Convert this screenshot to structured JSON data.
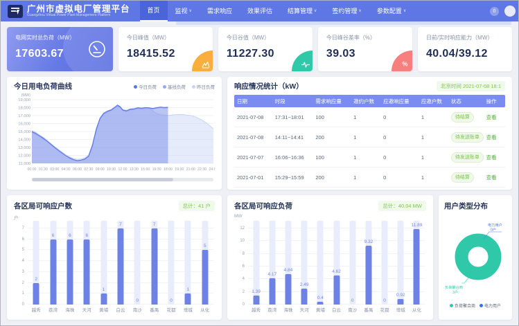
{
  "header": {
    "title": "广州市虚拟电厂管理平台",
    "subtitle": "Guangzhou Virtual Power Plant Management Platform",
    "nav": [
      {
        "label": "首页",
        "active": true,
        "caret": false
      },
      {
        "label": "监视",
        "active": false,
        "caret": true
      },
      {
        "label": "需求响应",
        "active": false,
        "caret": false
      },
      {
        "label": "效果评估",
        "active": false,
        "caret": false
      },
      {
        "label": "结算管理",
        "active": false,
        "caret": true
      },
      {
        "label": "签约管理",
        "active": false,
        "caret": true
      },
      {
        "label": "参数配置",
        "active": false,
        "caret": true
      }
    ],
    "notification_count": "0"
  },
  "kpis": [
    {
      "label": "电网实时总负荷（MW）",
      "value": "17603.67",
      "icon": "gauge-icon",
      "style": "primary",
      "accent": ""
    },
    {
      "label": "今日峰值（MW）",
      "value": "18415.52",
      "icon": "peak-icon",
      "style": "plain",
      "accent": "#f9ae3d"
    },
    {
      "label": "今日谷值（MW）",
      "value": "11227.30",
      "icon": "pulse-icon",
      "style": "plain",
      "accent": "#2fc9aa"
    },
    {
      "label": "今日峰谷差率（%）",
      "value": "39.03",
      "icon": "percent-icon",
      "style": "plain",
      "accent": "#f97e7e"
    },
    {
      "label": "日前/实时响应能力（MW）",
      "value": "40.04/39.12",
      "icon": "",
      "style": "plain",
      "accent": ""
    }
  ],
  "load_chart": {
    "title": "今日用电负荷曲线",
    "unit_label": "(MW)"
  },
  "response_table": {
    "title": "响应情况统计（kW）",
    "timestamp": "北京时间 2021-07-08 18:1",
    "columns": [
      "日期",
      "时段",
      "需求响应量",
      "邀约户数",
      "应邀响应量",
      "应邀户数",
      "状态",
      "操作"
    ],
    "rows": [
      {
        "cells": [
          "2021-07-08",
          "17:31~18:01",
          "100",
          "1",
          "0",
          "1"
        ],
        "status": "待结算",
        "action": "查看"
      },
      {
        "cells": [
          "2021-07-08",
          "14:11~14:41",
          "200",
          "1",
          "0",
          "1"
        ],
        "status": "待发送账单",
        "action": "查看"
      },
      {
        "cells": [
          "2021-07-07",
          "16:06~16:36",
          "100",
          "1",
          "0",
          "1"
        ],
        "status": "待发送账单",
        "action": "查看"
      },
      {
        "cells": [
          "2021-07-01",
          "15:29~15:59",
          "200",
          "1",
          "0",
          "1"
        ],
        "status": "待结算",
        "action": "查看"
      }
    ]
  },
  "district_users": {
    "title": "各区局可响应户数",
    "badge": "总计：41 户",
    "unit": "户"
  },
  "district_load": {
    "title": "各区局可响应负荷",
    "badge": "总计：40.04 MW",
    "unit": "MW"
  },
  "user_type": {
    "title": "用户类型分布",
    "callouts": [
      {
        "label": "电力用户",
        "value": "0户",
        "color": "#4a7df0"
      },
      {
        "label": "负荷聚合商",
        "value": "3户",
        "color": "#2fc9aa"
      }
    ],
    "legend": [
      {
        "label": "负荷聚合商",
        "color": "#2fc9aa"
      },
      {
        "label": "电力用户",
        "color": "#3a6ef0"
      }
    ]
  },
  "chart_data": [
    {
      "type": "area",
      "title": "今日用电负荷曲线",
      "ylabel": "(MW)",
      "ylim": [
        11000,
        19000
      ],
      "y_step": 1000,
      "x_ticks": [
        "00:00",
        "01:30",
        "03:00",
        "04:30",
        "06:00",
        "07:30",
        "09:00",
        "10:30",
        "12:00",
        "13:30",
        "15:00",
        "16:30",
        "18:00",
        "19:30",
        "21:00",
        "22:30",
        "24:00"
      ],
      "x_hours": [
        0,
        1.5,
        3,
        4.5,
        6,
        7.5,
        9,
        10.5,
        12,
        13.5,
        15,
        16.5,
        18,
        19.5,
        21,
        22.5,
        24
      ],
      "series": [
        {
          "name": "昨日负荷",
          "color": "#c9d4f7",
          "fill": "rgba(205,216,248,0.50)",
          "points": [
            [
              0,
              15120
            ],
            [
              0.5,
              14900
            ],
            [
              1,
              14580
            ],
            [
              1.5,
              14280
            ],
            [
              2,
              13920
            ],
            [
              2.5,
              13520
            ],
            [
              3,
              13120
            ],
            [
              3.5,
              12760
            ],
            [
              4,
              12420
            ],
            [
              4.5,
              12080
            ],
            [
              5,
              11820
            ],
            [
              5.5,
              11620
            ],
            [
              6,
              11500
            ],
            [
              6.5,
              11560
            ],
            [
              7,
              11700
            ],
            [
              7.5,
              12060
            ],
            [
              8,
              13380
            ],
            [
              8.5,
              15380
            ],
            [
              9,
              16720
            ],
            [
              9.5,
              17360
            ],
            [
              10,
              17620
            ],
            [
              10.5,
              17780
            ],
            [
              11,
              18120
            ],
            [
              11.5,
              18280
            ],
            [
              12,
              17800
            ],
            [
              12.5,
              17660
            ],
            [
              13,
              17840
            ],
            [
              13.5,
              17880
            ],
            [
              14,
              18020
            ],
            [
              14.5,
              17960
            ],
            [
              15,
              18030
            ],
            [
              15.5,
              18000
            ],
            [
              16,
              17600
            ],
            [
              16.5,
              17250
            ],
            [
              17,
              17120
            ],
            [
              17.5,
              17060
            ],
            [
              18,
              17020
            ],
            [
              18.5,
              17060
            ],
            [
              19,
              17120
            ],
            [
              19.5,
              17160
            ],
            [
              20,
              17120
            ],
            [
              20.5,
              17070
            ],
            [
              21,
              17010
            ],
            [
              21.5,
              16890
            ],
            [
              22,
              16680
            ],
            [
              22.5,
              16430
            ],
            [
              23,
              16130
            ],
            [
              23.5,
              15740
            ],
            [
              24,
              15320
            ]
          ]
        },
        {
          "name": "基线负荷",
          "color": "#9aa8f0",
          "fill": "rgba(154,168,240,0.28)",
          "points": [
            [
              0,
              14920
            ],
            [
              1,
              14400
            ],
            [
              2,
              13760
            ],
            [
              3,
              12960
            ],
            [
              4,
              12240
            ],
            [
              5,
              11650
            ],
            [
              5.5,
              11430
            ],
            [
              6,
              11300
            ],
            [
              6.5,
              11380
            ],
            [
              7,
              11500
            ],
            [
              7.5,
              11850
            ],
            [
              8,
              13150
            ],
            [
              8.5,
              15100
            ],
            [
              9,
              16550
            ],
            [
              9.5,
              17200
            ],
            [
              10,
              17480
            ],
            [
              10.5,
              17650
            ],
            [
              11,
              18000
            ],
            [
              11.3,
              18230
            ],
            [
              11.7,
              18020
            ],
            [
              12,
              17650
            ],
            [
              12.5,
              17530
            ],
            [
              13,
              17730
            ],
            [
              13.5,
              17780
            ],
            [
              14,
              17920
            ],
            [
              14.5,
              17860
            ],
            [
              15,
              17950
            ],
            [
              15.5,
              17920
            ],
            [
              16,
              17840
            ],
            [
              16.5,
              17940
            ],
            [
              17,
              18010
            ],
            [
              17.5,
              17960
            ],
            [
              18,
              17980
            ]
          ]
        },
        {
          "name": "今日负荷",
          "color": "#5b74e0",
          "fill": "rgba(101,125,230,0.32)",
          "points": [
            [
              0,
              15000
            ],
            [
              0.5,
              14780
            ],
            [
              1,
              14480
            ],
            [
              1.5,
              14180
            ],
            [
              2,
              13820
            ],
            [
              2.5,
              13420
            ],
            [
              3,
              13020
            ],
            [
              3.5,
              12650
            ],
            [
              4,
              12300
            ],
            [
              4.5,
              11960
            ],
            [
              5,
              11700
            ],
            [
              5.5,
              11480
            ],
            [
              6,
              11350
            ],
            [
              6.5,
              11420
            ],
            [
              7,
              11560
            ],
            [
              7.5,
              11920
            ],
            [
              8,
              13250
            ],
            [
              8.5,
              15250
            ],
            [
              9,
              16650
            ],
            [
              9.5,
              17280
            ],
            [
              10,
              17560
            ],
            [
              10.5,
              17720
            ],
            [
              11,
              18080
            ],
            [
              11.3,
              18320
            ],
            [
              11.7,
              18100
            ],
            [
              12,
              17720
            ],
            [
              12.5,
              17600
            ],
            [
              13,
              17800
            ],
            [
              13.5,
              17840
            ],
            [
              14,
              17990
            ],
            [
              14.5,
              17930
            ],
            [
              15,
              18010
            ],
            [
              15.5,
              17980
            ],
            [
              16,
              17900
            ],
            [
              16.5,
              18000
            ],
            [
              17,
              18080
            ],
            [
              17.5,
              18020
            ],
            [
              18,
              18050
            ]
          ]
        }
      ],
      "legend_order": [
        "今日负荷",
        "基线负荷",
        "昨日负荷"
      ]
    },
    {
      "type": "bar",
      "title": "各区局可响应户数",
      "ylabel": "户",
      "categories": [
        "越秀",
        "荔湾",
        "海珠",
        "天河",
        "黄埔",
        "白云",
        "南沙",
        "番禺",
        "花都",
        "增城",
        "从化"
      ],
      "values": [
        2,
        6,
        6,
        6,
        1,
        7,
        0,
        7,
        0,
        1,
        5
      ],
      "ylim": [
        0,
        7
      ],
      "y_step": 1,
      "total": "总计：41 户"
    },
    {
      "type": "bar",
      "title": "各区局可响应负荷",
      "ylabel": "MW",
      "categories": [
        "越秀",
        "荔湾",
        "海珠",
        "天河",
        "黄埔",
        "白云",
        "南沙",
        "番禺",
        "花都",
        "增城",
        "从化"
      ],
      "values": [
        1.39,
        4.17,
        4.84,
        2.49,
        0.4,
        4.62,
        0,
        9.32,
        0,
        0.92,
        11.89
      ],
      "ylim": [
        0,
        12
      ],
      "y_step": 2,
      "total": "总计：40.04 MW"
    },
    {
      "type": "pie",
      "title": "用户类型分布",
      "slices": [
        {
          "name": "负荷聚合商",
          "value": 3,
          "color": "#2fc9aa"
        },
        {
          "name": "电力用户",
          "value": 0,
          "color": "#3a6ef0"
        }
      ]
    }
  ]
}
